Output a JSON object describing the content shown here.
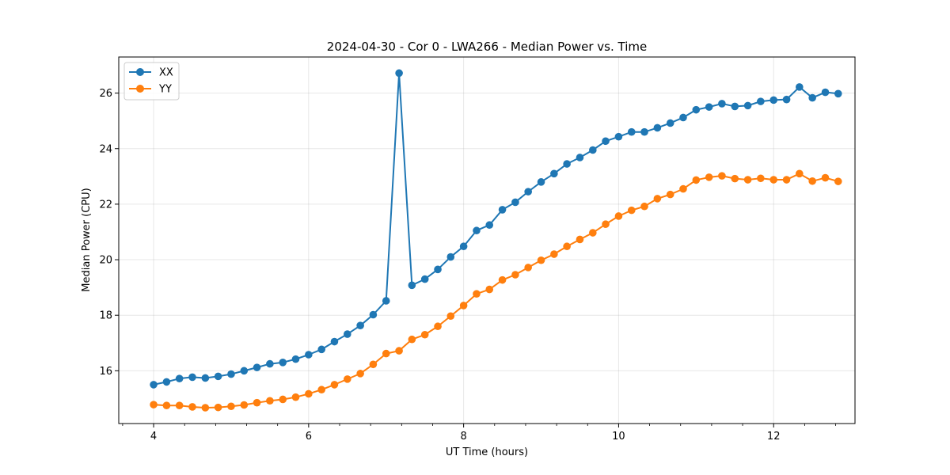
{
  "chart_data": {
    "type": "line",
    "title": "2024-04-30 - Cor 0 - LWA266 - Median Power vs. Time",
    "xlabel": "UT Time (hours)",
    "ylabel": "Median Power (CPU)",
    "xlim": [
      3.55,
      13.05
    ],
    "ylim": [
      14.1,
      27.3
    ],
    "xticks": [
      4,
      6,
      8,
      10,
      12
    ],
    "xtick_labels": [
      "4",
      "6",
      "8",
      "10",
      "12"
    ],
    "xminor_step": 0.4,
    "yticks": [
      16,
      18,
      20,
      22,
      24,
      26
    ],
    "ytick_labels": [
      "16",
      "18",
      "20",
      "22",
      "24",
      "26"
    ],
    "grid": true,
    "legend_position": "top-left",
    "x": [
      4.0,
      4.167,
      4.333,
      4.5,
      4.667,
      4.833,
      5.0,
      5.167,
      5.333,
      5.5,
      5.667,
      5.833,
      6.0,
      6.167,
      6.333,
      6.5,
      6.667,
      6.833,
      7.0,
      7.167,
      7.333,
      7.5,
      7.667,
      7.833,
      8.0,
      8.167,
      8.333,
      8.5,
      8.667,
      8.833,
      9.0,
      9.167,
      9.333,
      9.5,
      9.667,
      9.833,
      10.0,
      10.167,
      10.333,
      10.5,
      10.667,
      10.833,
      11.0,
      11.167,
      11.333,
      11.5,
      11.667,
      11.833,
      12.0,
      12.167,
      12.333,
      12.5,
      12.667,
      12.833
    ],
    "series": [
      {
        "name": "XX",
        "color": "#1f77b4",
        "values": [
          15.5,
          15.6,
          15.72,
          15.77,
          15.74,
          15.8,
          15.88,
          16.0,
          16.12,
          16.25,
          16.3,
          16.42,
          16.58,
          16.77,
          17.05,
          17.32,
          17.63,
          18.02,
          18.52,
          26.72,
          19.08,
          19.3,
          19.65,
          20.1,
          20.48,
          21.05,
          21.25,
          21.8,
          22.07,
          22.45,
          22.8,
          23.1,
          23.45,
          23.68,
          23.95,
          24.27,
          24.43,
          24.6,
          24.6,
          24.75,
          24.92,
          25.12,
          25.4,
          25.5,
          25.62,
          25.52,
          25.55,
          25.7,
          25.75,
          25.77,
          26.22,
          25.83,
          26.03,
          25.98
        ]
      },
      {
        "name": "YY",
        "color": "#ff7f0e",
        "values": [
          14.78,
          14.75,
          14.75,
          14.7,
          14.67,
          14.68,
          14.72,
          14.77,
          14.85,
          14.92,
          14.97,
          15.05,
          15.17,
          15.32,
          15.5,
          15.7,
          15.9,
          16.23,
          16.62,
          16.72,
          17.13,
          17.3,
          17.6,
          17.97,
          18.35,
          18.77,
          18.93,
          19.27,
          19.46,
          19.72,
          19.98,
          20.2,
          20.48,
          20.73,
          20.97,
          21.28,
          21.57,
          21.78,
          21.92,
          22.2,
          22.35,
          22.55,
          22.87,
          22.97,
          23.02,
          22.92,
          22.88,
          22.93,
          22.88,
          22.88,
          23.1,
          22.83,
          22.95,
          22.82
        ]
      }
    ]
  }
}
